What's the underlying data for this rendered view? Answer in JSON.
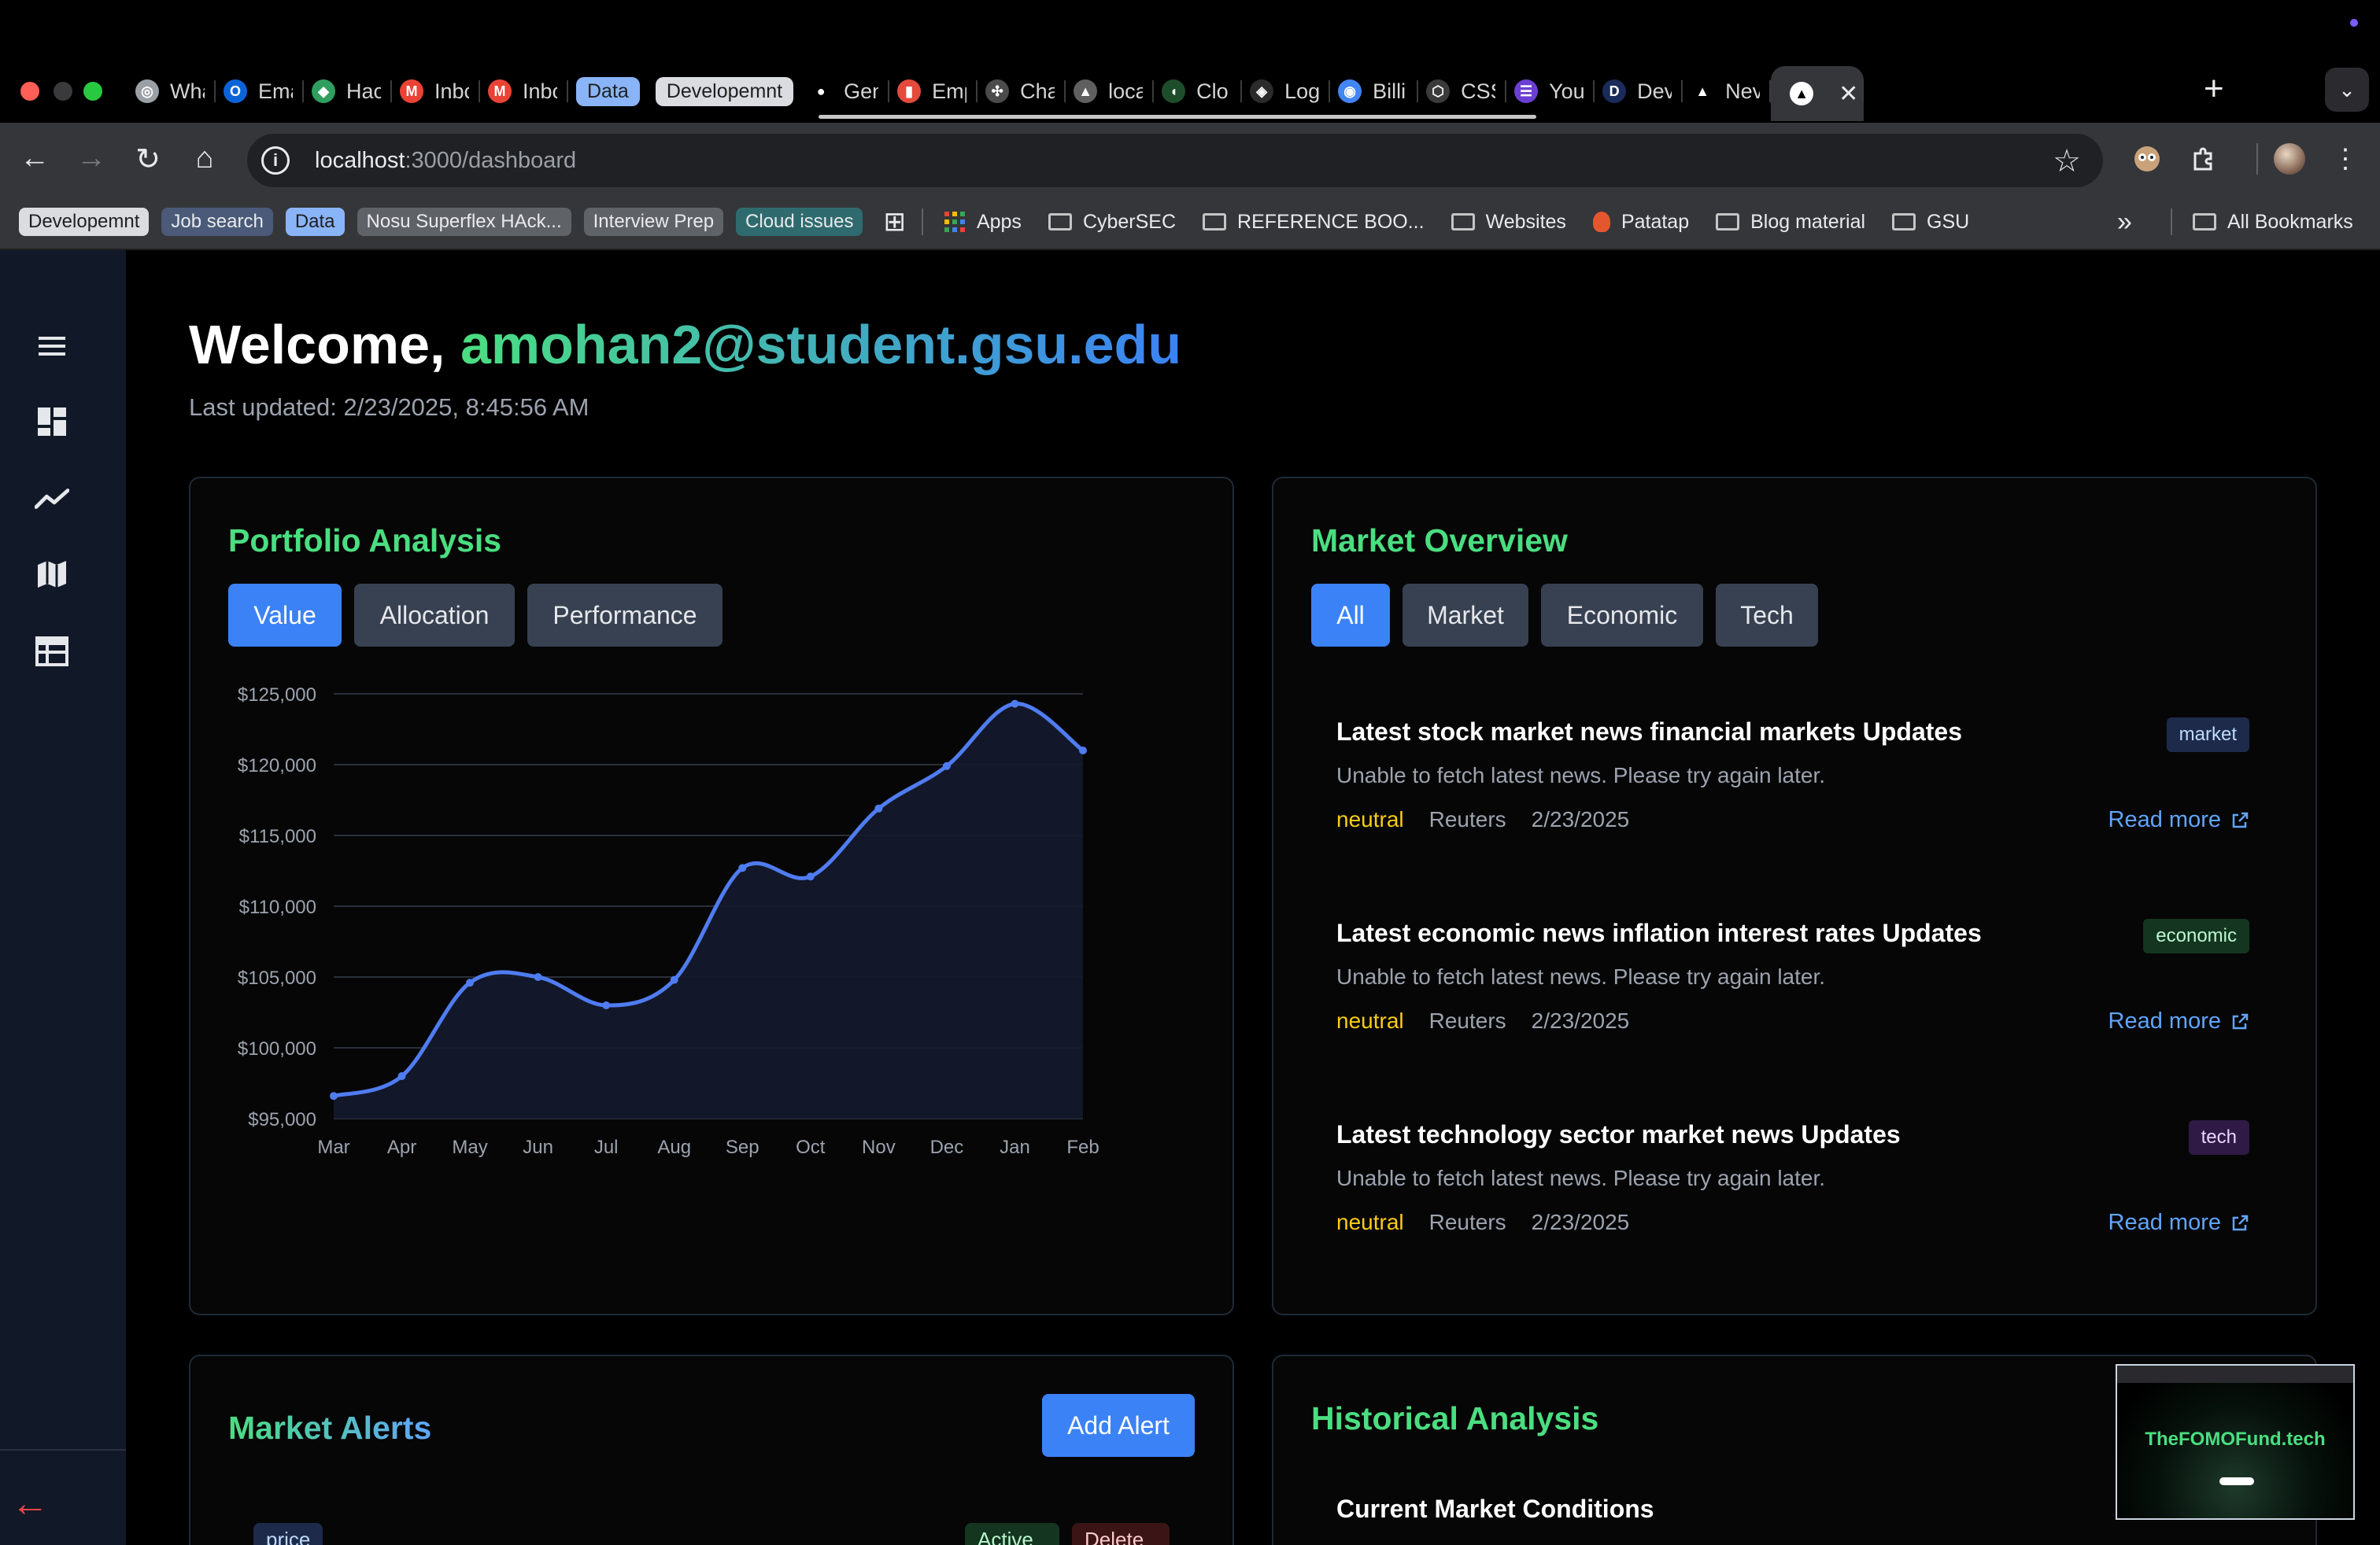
{
  "browser": {
    "tabs": [
      {
        "label": "Wha",
        "icon": "chrome-icon",
        "color": "#9aa0a6",
        "glyph": "◎"
      },
      {
        "label": "Ema",
        "icon": "outlook-icon",
        "color": "#0a64d8",
        "glyph": "O"
      },
      {
        "label": "Hac",
        "icon": "hackathon-icon",
        "color": "#2f9e5e",
        "glyph": "◆"
      },
      {
        "label": "Inbc",
        "icon": "gmail-icon",
        "color": "#ea4335",
        "glyph": "M"
      },
      {
        "label": "Inbc",
        "icon": "gmail-icon",
        "color": "#ea4335",
        "glyph": "M"
      },
      {
        "label": "Data",
        "group": true,
        "chipBg": "#8ab4f8",
        "chipFg": "#1f1f1f"
      },
      {
        "label": "Developemnt",
        "group": true,
        "chipBg": "#dadce0",
        "chipFg": "#1f1f1f"
      },
      {
        "label": "Gen",
        "icon": "github-icon",
        "color": "#000000",
        "glyph": "●"
      },
      {
        "label": "Emp",
        "icon": "trello-icon",
        "color": "#e34a3c",
        "glyph": "▮"
      },
      {
        "label": "Cha",
        "icon": "openai-icon",
        "color": "#4b4b4b",
        "glyph": "✣"
      },
      {
        "label": "loca",
        "icon": "vercel-icon",
        "color": "#5f5f5f",
        "glyph": "▲"
      },
      {
        "label": "Clo",
        "icon": "mongodb-icon",
        "color": "#1e4d2b",
        "glyph": "◖"
      },
      {
        "label": "Log",
        "icon": "shield-icon",
        "color": "#2b2b2b",
        "glyph": "◈"
      },
      {
        "label": "Billi",
        "icon": "google-cloud-icon",
        "color": "#4285f4",
        "glyph": "◉"
      },
      {
        "label": "CSS",
        "icon": "css-icon",
        "color": "#3b3b3b",
        "glyph": "⬡"
      },
      {
        "label": "You",
        "icon": "list-icon",
        "color": "#6b3fd3",
        "glyph": "☰"
      },
      {
        "label": "Dev",
        "icon": "dev-icon",
        "color": "#1a2b5a",
        "glyph": "D"
      },
      {
        "label": "Nev",
        "icon": "vercel-icon",
        "color": "#000000",
        "glyph": "▲"
      }
    ],
    "active_tab_icon": "vercel-icon",
    "active_tab_close": "✕",
    "new_tab": "+",
    "url_host": "localhost",
    "url_path": ":3000/dashboard",
    "bookmark_groups": [
      {
        "label": "Developemnt",
        "bg": "#dadce0",
        "fg": "#1f1f1f"
      },
      {
        "label": "Job search",
        "bg": "#4a5a78",
        "fg": "#e8eaed"
      },
      {
        "label": "Data",
        "bg": "#8ab4f8",
        "fg": "#1f1f1f"
      },
      {
        "label": "Nosu Superflex HAck...",
        "bg": "#5f6368",
        "fg": "#e8eaed"
      },
      {
        "label": "Interview Prep",
        "bg": "#5f6368",
        "fg": "#e8eaed"
      },
      {
        "label": "Cloud issues",
        "bg": "#2f6b6e",
        "fg": "#e8eaed"
      }
    ],
    "bookmarks": [
      {
        "label": "Apps",
        "icon": "apps-icon"
      },
      {
        "label": "CyberSEC",
        "icon": "folder-icon"
      },
      {
        "label": "REFERENCE BOO...",
        "icon": "folder-icon"
      },
      {
        "label": "Websites",
        "icon": "folder-icon"
      },
      {
        "label": "Patatap",
        "icon": "patatap-icon"
      },
      {
        "label": "Blog material",
        "icon": "folder-icon"
      },
      {
        "label": "GSU",
        "icon": "folder-icon"
      }
    ],
    "more_bookmarks": "»",
    "all_bookmarks": "All Bookmarks"
  },
  "sidebar": {
    "items": [
      {
        "icon": "menu-icon"
      },
      {
        "icon": "dashboard-icon"
      },
      {
        "icon": "trending-icon"
      },
      {
        "icon": "map-icon"
      },
      {
        "icon": "table-icon"
      }
    ],
    "collapse": "←"
  },
  "header": {
    "welcome_prefix": "Welcome, ",
    "user_email": "amohan2@student.gsu.edu",
    "last_updated": "Last updated: 2/23/2025, 8:45:56 AM"
  },
  "portfolio": {
    "title": "Portfolio Analysis",
    "tabs": [
      "Value",
      "Allocation",
      "Performance"
    ],
    "active_tab": 0
  },
  "chart_data": {
    "type": "line",
    "categories": [
      "Mar",
      "Apr",
      "May",
      "Jun",
      "Jul",
      "Aug",
      "Sep",
      "Oct",
      "Nov",
      "Dec",
      "Jan",
      "Feb"
    ],
    "series": [
      {
        "values": [
          96600,
          98000,
          104600,
          105000,
          103000,
          104800,
          112700,
          112100,
          116900,
          119900,
          124300,
          121000
        ]
      }
    ],
    "yticks": [
      "$95,000",
      "$100,000",
      "$105,000",
      "$110,000",
      "$115,000",
      "$120,000",
      "$125,000"
    ],
    "ylim": [
      95000,
      125000
    ],
    "grid": true,
    "line_color": "#4f7cf0",
    "area_fill": "#141a2e"
  },
  "market": {
    "title": "Market Overview",
    "filters": [
      "All",
      "Market",
      "Economic",
      "Tech"
    ],
    "active_filter": 0,
    "news": [
      {
        "title": "Latest stock market news financial markets Updates",
        "body": "Unable to fetch latest news. Please try again later.",
        "sentiment": "neutral",
        "source": "Reuters",
        "date": "2/23/2025",
        "tag": "market",
        "link": "Read more"
      },
      {
        "title": "Latest economic news inflation interest rates Updates",
        "body": "Unable to fetch latest news. Please try again later.",
        "sentiment": "neutral",
        "source": "Reuters",
        "date": "2/23/2025",
        "tag": "economic",
        "link": "Read more"
      },
      {
        "title": "Latest technology sector market news Updates",
        "body": "Unable to fetch latest news. Please try again later.",
        "sentiment": "neutral",
        "source": "Reuters",
        "date": "2/23/2025",
        "tag": "tech",
        "link": "Read more"
      }
    ]
  },
  "alerts": {
    "title": "Market Alerts",
    "add_label": "Add Alert",
    "chips": [
      {
        "label": "price",
        "bg": "#1e2a4a",
        "fg": "#bfdbfe"
      },
      {
        "label": "Active",
        "bg": "#14351f",
        "fg": "#bbf7d0"
      },
      {
        "label": "Delete",
        "bg": "#3b1515",
        "fg": "#fecaca"
      }
    ]
  },
  "historical": {
    "title": "Historical Analysis",
    "subtitle": "Current Market Conditions"
  },
  "preview": {
    "title": "TheFOMOFund.tech"
  }
}
